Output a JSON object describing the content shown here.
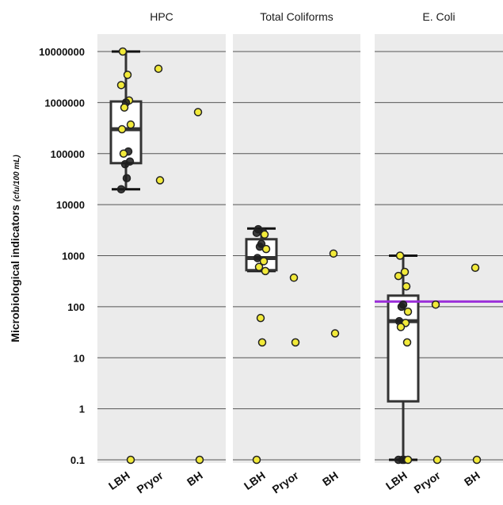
{
  "chart_data": {
    "type": "box-scatter",
    "ylabel": "Microbiological indicators",
    "ylabel_unit": "(cfu/100 mL)",
    "y_scale": "log10",
    "ylim": [
      0.1,
      10000000
    ],
    "y_ticks": [
      "0.1",
      "1",
      "10",
      "100",
      "1000",
      "10000",
      "100000",
      "1000000",
      "10000000"
    ],
    "categories": [
      "LBH",
      "Pryor",
      "BH"
    ],
    "grid": true,
    "colors": {
      "panel_bg": "#ebebeb",
      "grid": "#555555",
      "point_yellow": "#f2ea3a",
      "point_black": "#1c1c1c",
      "threshold": "#9b30d9",
      "box_stroke": "#333333"
    },
    "panels": [
      {
        "title": "HPC",
        "box": {
          "category": "LBH",
          "whisker_low": 20000,
          "q1": 65000,
          "median": 300000,
          "q3": 1050000,
          "whisker_high": 10000000
        },
        "points": [
          {
            "category": "LBH",
            "value": 10000000,
            "color": "yellow"
          },
          {
            "category": "LBH",
            "value": 3500000,
            "color": "yellow"
          },
          {
            "category": "LBH",
            "value": 2200000,
            "color": "yellow"
          },
          {
            "category": "LBH",
            "value": 1100000,
            "color": "yellow"
          },
          {
            "category": "LBH",
            "value": 1000000,
            "color": "black"
          },
          {
            "category": "LBH",
            "value": 800000,
            "color": "yellow"
          },
          {
            "category": "LBH",
            "value": 370000,
            "color": "yellow"
          },
          {
            "category": "LBH",
            "value": 300000,
            "color": "yellow"
          },
          {
            "category": "LBH",
            "value": 110000,
            "color": "black"
          },
          {
            "category": "LBH",
            "value": 100000,
            "color": "yellow"
          },
          {
            "category": "LBH",
            "value": 70000,
            "color": "black"
          },
          {
            "category": "LBH",
            "value": 62000,
            "color": "black"
          },
          {
            "category": "LBH",
            "value": 33000,
            "color": "black"
          },
          {
            "category": "LBH",
            "value": 20000,
            "color": "black"
          },
          {
            "category": "LBH",
            "value": 0.1,
            "color": "yellow"
          },
          {
            "category": "Pryor",
            "value": 4600000,
            "color": "yellow"
          },
          {
            "category": "Pryor",
            "value": 30000,
            "color": "yellow"
          },
          {
            "category": "BH",
            "value": 650000,
            "color": "yellow"
          },
          {
            "category": "BH",
            "value": 0.1,
            "color": "yellow"
          }
        ]
      },
      {
        "title": "Total Coliforms",
        "box": {
          "category": "LBH",
          "whisker_low": 500,
          "q1": 520,
          "median": 900,
          "q3": 2100,
          "whisker_high": 3400
        },
        "points": [
          {
            "category": "LBH",
            "value": 3300,
            "color": "black"
          },
          {
            "category": "LBH",
            "value": 2900,
            "color": "black"
          },
          {
            "category": "LBH",
            "value": 2800,
            "color": "black"
          },
          {
            "category": "LBH",
            "value": 2600,
            "color": "yellow"
          },
          {
            "category": "LBH",
            "value": 1700,
            "color": "black"
          },
          {
            "category": "LBH",
            "value": 1500,
            "color": "black"
          },
          {
            "category": "LBH",
            "value": 1350,
            "color": "yellow"
          },
          {
            "category": "LBH",
            "value": 900,
            "color": "black"
          },
          {
            "category": "LBH",
            "value": 780,
            "color": "yellow"
          },
          {
            "category": "LBH",
            "value": 600,
            "color": "yellow"
          },
          {
            "category": "LBH",
            "value": 500,
            "color": "yellow"
          },
          {
            "category": "LBH",
            "value": 60,
            "color": "yellow"
          },
          {
            "category": "LBH",
            "value": 20,
            "color": "yellow"
          },
          {
            "category": "LBH",
            "value": 0.1,
            "color": "yellow"
          },
          {
            "category": "Pryor",
            "value": 370,
            "color": "yellow"
          },
          {
            "category": "Pryor",
            "value": 20,
            "color": "yellow"
          },
          {
            "category": "BH",
            "value": 1100,
            "color": "yellow"
          },
          {
            "category": "BH",
            "value": 30,
            "color": "yellow"
          }
        ]
      },
      {
        "title": "E. Coli",
        "threshold": 126,
        "box": {
          "category": "LBH",
          "whisker_low": 0.1,
          "q1": 1.4,
          "median": 52,
          "q3": 165,
          "whisker_high": 1000
        },
        "points": [
          {
            "category": "LBH",
            "value": 1000,
            "color": "yellow"
          },
          {
            "category": "LBH",
            "value": 480,
            "color": "yellow"
          },
          {
            "category": "LBH",
            "value": 400,
            "color": "yellow"
          },
          {
            "category": "LBH",
            "value": 250,
            "color": "yellow"
          },
          {
            "category": "LBH",
            "value": 110,
            "color": "black"
          },
          {
            "category": "LBH",
            "value": 100,
            "color": "black"
          },
          {
            "category": "LBH",
            "value": 80,
            "color": "yellow"
          },
          {
            "category": "LBH",
            "value": 52,
            "color": "black"
          },
          {
            "category": "LBH",
            "value": 48,
            "color": "yellow"
          },
          {
            "category": "LBH",
            "value": 40,
            "color": "yellow"
          },
          {
            "category": "LBH",
            "value": 20,
            "color": "yellow"
          },
          {
            "category": "LBH",
            "value": 0.1,
            "color": "black"
          },
          {
            "category": "LBH",
            "value": 0.1,
            "color": "black"
          },
          {
            "category": "LBH",
            "value": 0.1,
            "color": "black"
          },
          {
            "category": "LBH",
            "value": 0.1,
            "color": "yellow"
          },
          {
            "category": "Pryor",
            "value": 110,
            "color": "yellow"
          },
          {
            "category": "Pryor",
            "value": 0.1,
            "color": "yellow"
          },
          {
            "category": "BH",
            "value": 580,
            "color": "yellow"
          },
          {
            "category": "BH",
            "value": 0.1,
            "color": "yellow"
          }
        ]
      }
    ]
  }
}
